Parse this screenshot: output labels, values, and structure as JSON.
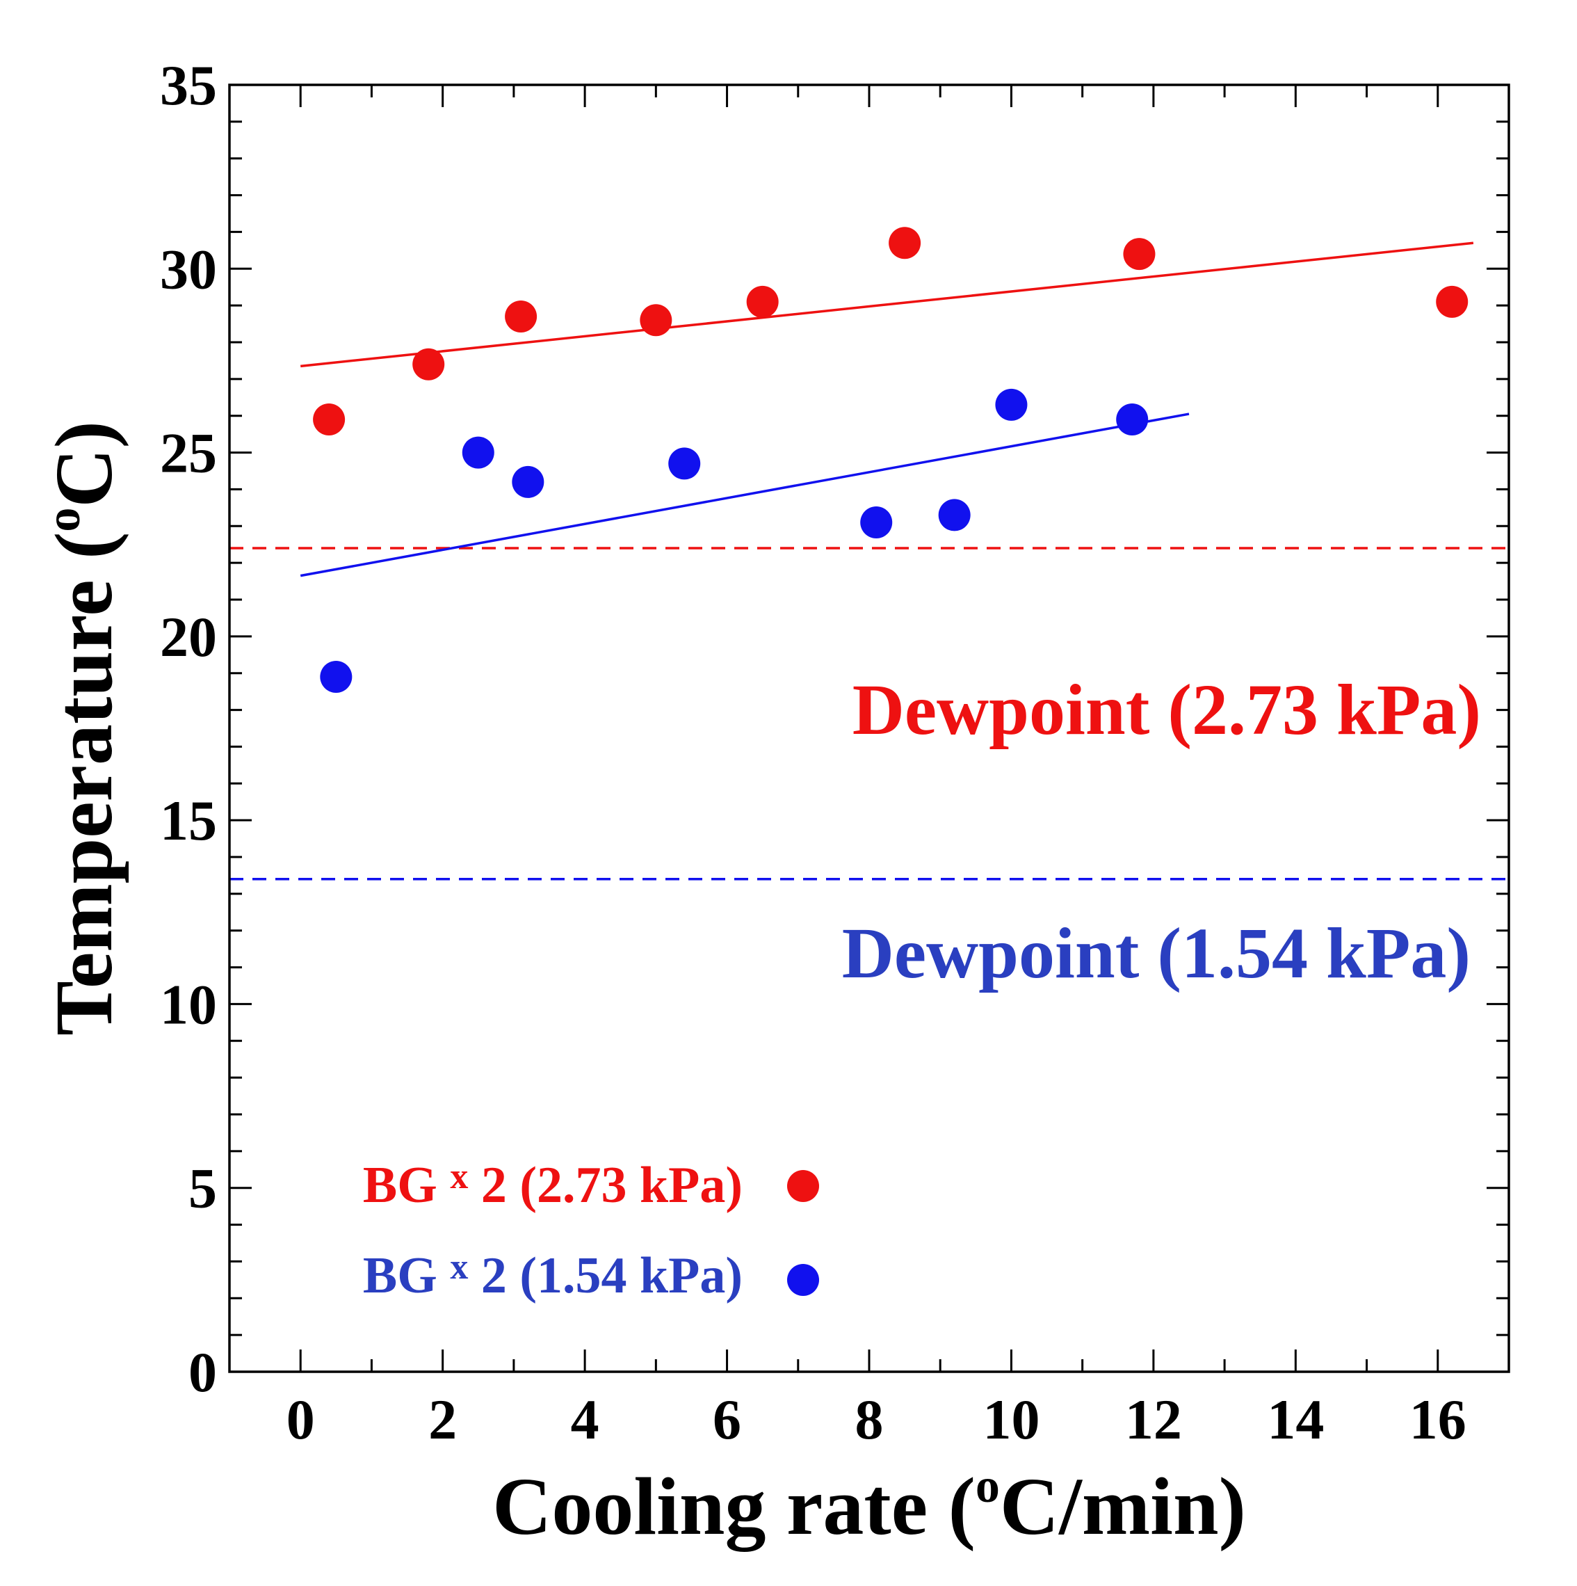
{
  "chart_data": {
    "type": "scatter",
    "title": "",
    "xlabel": "Cooling rate (",
    "xlabel_sup": "o",
    "xlabel_unit": "C/min)",
    "ylabel": "Temperature (",
    "ylabel_sup": "o",
    "ylabel_unit": "C)",
    "xlim": [
      -1,
      17
    ],
    "ylim": [
      0,
      35
    ],
    "xticks": [
      0,
      2,
      4,
      6,
      8,
      10,
      12,
      14,
      16
    ],
    "yticks": [
      0,
      5,
      10,
      15,
      20,
      25,
      30,
      35
    ],
    "x_minor_step": 1,
    "y_minor_step": 1,
    "series": [
      {
        "name": "BG x 2 (2.73 kPa)",
        "legend_prefix": "BG ",
        "legend_x": "x",
        "legend_suffix": " 2 (2.73 kPa)",
        "color": "#ee1111",
        "marker": "circle",
        "x": [
          0.4,
          1.8,
          3.1,
          5.0,
          6.5,
          8.5,
          11.8,
          16.2
        ],
        "y": [
          25.9,
          27.4,
          28.7,
          28.6,
          29.1,
          30.7,
          30.4,
          29.1
        ],
        "fit": {
          "x": [
            0.0,
            16.5
          ],
          "y": [
            27.35,
            30.7
          ]
        },
        "dewpoint": 22.4,
        "dewpoint_label": "Dewpoint (2.73 kPa)"
      },
      {
        "name": "BG x 2 (1.54 kPa)",
        "legend_prefix": "BG ",
        "legend_x": "x",
        "legend_suffix": " 2 (1.54 kPa)",
        "color": "#1111ee",
        "label_color": "#2a3fc0",
        "marker": "circle",
        "x": [
          0.5,
          2.5,
          3.2,
          5.4,
          8.1,
          9.2,
          10.0,
          11.7
        ],
        "y": [
          18.9,
          25.0,
          24.2,
          24.7,
          23.1,
          23.3,
          26.3,
          25.9
        ],
        "fit": {
          "x": [
            0.0,
            12.5
          ],
          "y": [
            21.65,
            26.05
          ]
        },
        "dewpoint": 13.4,
        "dewpoint_label": "Dewpoint (1.54 kPa)"
      }
    ],
    "legend_position": "bottom-left",
    "grid": false
  }
}
